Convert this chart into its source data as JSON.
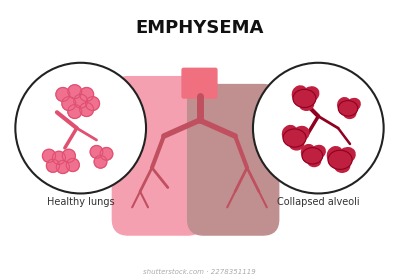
{
  "title": "EMPHYSEMA",
  "title_fontsize": 13,
  "title_fontweight": "bold",
  "label_left": "Healthy lungs",
  "label_right": "Collapsed alveoli",
  "label_fontsize": 7,
  "bg_color": "#ffffff",
  "lung_left_color": "#f5a0b0",
  "lung_right_color": "#c09090",
  "trachea_color": "#f07080",
  "bronchi_color": "#c05060",
  "alveoli_healthy_color": "#f07090",
  "alveoli_healthy_outline": "#e05070",
  "alveoli_collapsed_color": "#c02040",
  "alveoli_collapsed_outline": "#900020",
  "circle_outline": "#222222",
  "circle_lw": 1.5,
  "watermark": "shutterstock.com · 2278351119"
}
